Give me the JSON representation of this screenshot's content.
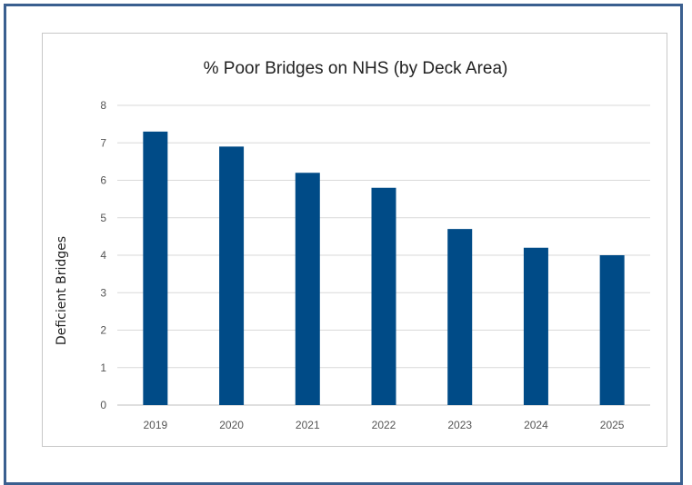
{
  "chart_data": {
    "type": "bar",
    "title": "% Poor Bridges on NHS (by Deck Area)",
    "xlabel": "",
    "ylabel": "Deficient Bridges",
    "categories": [
      "2019",
      "2020",
      "2021",
      "2022",
      "2023",
      "2024",
      "2025"
    ],
    "values": [
      7.3,
      6.9,
      6.2,
      5.8,
      4.7,
      4.2,
      4.0
    ],
    "ylim": [
      0,
      8
    ],
    "yticks": [
      "0",
      "1",
      "2",
      "3",
      "4",
      "5",
      "6",
      "7",
      "8"
    ],
    "grid": true,
    "legend": "none",
    "bar_color": "#004b87"
  }
}
